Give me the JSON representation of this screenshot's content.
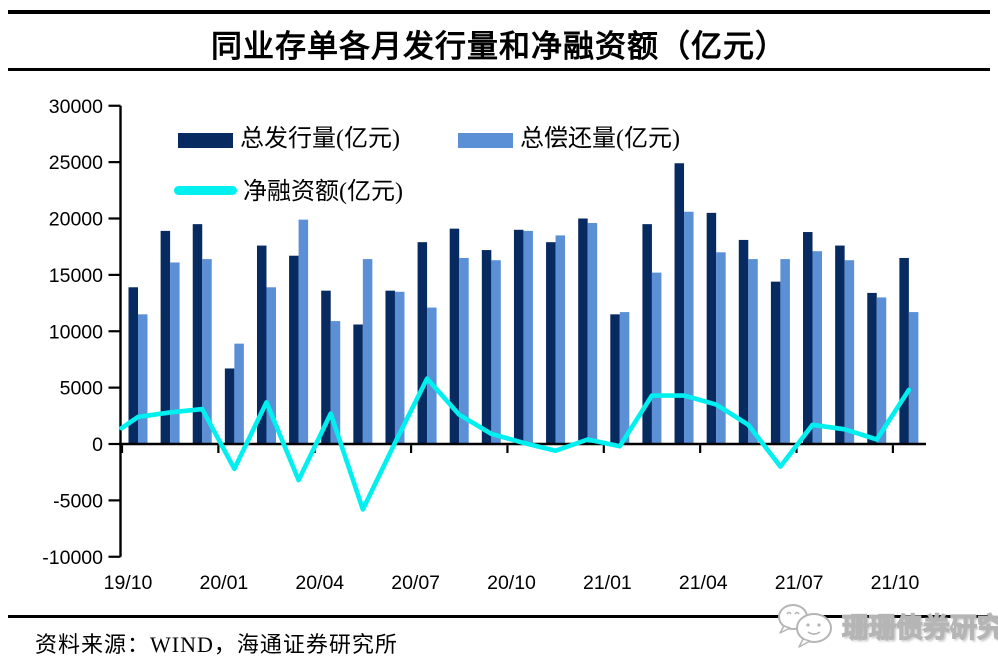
{
  "page": {
    "source_note": "资料来源：WIND，海通证券研究所"
  },
  "watermark": {
    "text": "珊珊债券研究",
    "icon": "wechat-bubbles-icon"
  },
  "colors": {
    "issuance_bar": "#072a61",
    "repayment_bar": "#5b8fd6",
    "net_line": "#00f0f0",
    "axis": "#000000"
  },
  "chart_data": {
    "type": "bar+line",
    "title": "同业存单各月发行量和净融资额（亿元）",
    "categories": [
      "19/10",
      "19/11",
      "19/12",
      "20/01",
      "20/02",
      "20/03",
      "20/04",
      "20/05",
      "20/06",
      "20/07",
      "20/08",
      "20/09",
      "20/10",
      "20/11",
      "20/12",
      "21/01",
      "21/02",
      "21/03",
      "21/04",
      "21/05",
      "21/06",
      "21/07",
      "21/08",
      "21/09",
      "21/10"
    ],
    "x_axis_tick_labels": [
      "19/10",
      "20/01",
      "20/04",
      "20/07",
      "20/10",
      "21/01",
      "21/04",
      "21/07",
      "21/10"
    ],
    "y_axis": {
      "min": -10000,
      "max": 30000,
      "tick_step": 5000,
      "ticks": [
        30000,
        25000,
        20000,
        15000,
        10000,
        5000,
        0,
        -5000,
        -10000
      ]
    },
    "grid": "off",
    "legend_position": "top-inside",
    "series": [
      {
        "name": "总发行量(亿元)",
        "type": "bar",
        "color": "#072a61",
        "values": [
          13900,
          18900,
          19500,
          6700,
          17600,
          16700,
          13600,
          10600,
          13600,
          17900,
          19100,
          17200,
          19000,
          17900,
          20000,
          11500,
          19500,
          24900,
          20500,
          18100,
          14400,
          18800,
          17600,
          13400,
          16500
        ]
      },
      {
        "name": "总偿还量(亿元)",
        "type": "bar",
        "color": "#5b8fd6",
        "values": [
          11500,
          16100,
          16400,
          8900,
          13900,
          19900,
          10900,
          16400,
          13500,
          12100,
          16500,
          16300,
          18900,
          18500,
          19600,
          11700,
          15200,
          20600,
          17000,
          16400,
          16400,
          17100,
          16300,
          13000,
          11700
        ]
      },
      {
        "name": "净融资额(亿元)",
        "type": "line",
        "color": "#00f0f0",
        "values": [
          2400,
          2800,
          3100,
          -2200,
          3700,
          -3200,
          2700,
          -5800,
          100,
          5800,
          2600,
          900,
          100,
          -600,
          400,
          -200,
          4300,
          4300,
          3500,
          1700,
          -2000,
          1700,
          1300,
          400,
          4800
        ]
      }
    ]
  }
}
